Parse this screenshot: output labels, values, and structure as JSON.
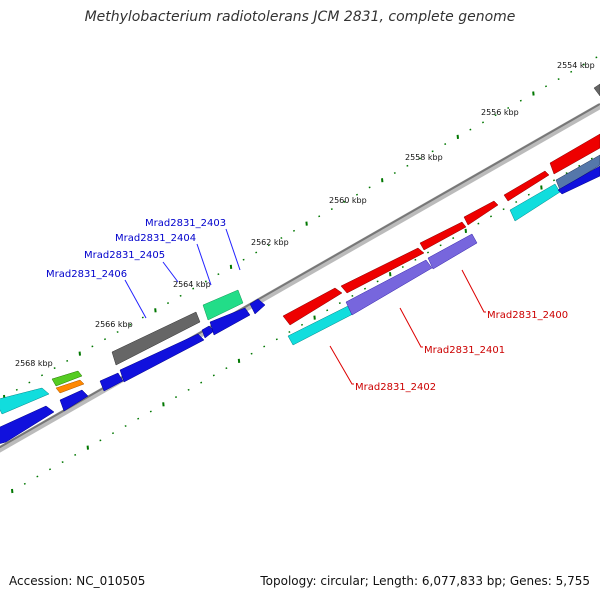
{
  "title": "Methylobacterium radiotolerans JCM 2831, complete genome",
  "footer": {
    "accession": "Accession: NC_010505",
    "topology": "Topology: circular; Length: 6,077,833 bp; Genes: 5,755"
  },
  "ruler": {
    "labels": [
      "2554 kbp",
      "2556 kbp",
      "2558 kbp",
      "2560 kbp",
      "2562 kbp",
      "2564 kbp",
      "2566 kbp",
      "2568 kbp"
    ]
  },
  "gene_labels": {
    "blue": [
      "Mrad2831_2403",
      "Mrad2831_2404",
      "Mrad2831_2405",
      "Mrad2831_2406"
    ],
    "red": [
      "Mrad2831_2400",
      "Mrad2831_2401",
      "Mrad2831_2402"
    ]
  },
  "colors": {
    "red": "#ee0000",
    "cyan": "#11dddd",
    "blue": "#1111dd",
    "purple": "#7766dd",
    "gray": "#666666",
    "green": "#22dd88",
    "orange": "#ff8800",
    "lime": "#55cc22",
    "steel": "#5577aa",
    "backbone": "#888888",
    "tick": "#007700"
  }
}
